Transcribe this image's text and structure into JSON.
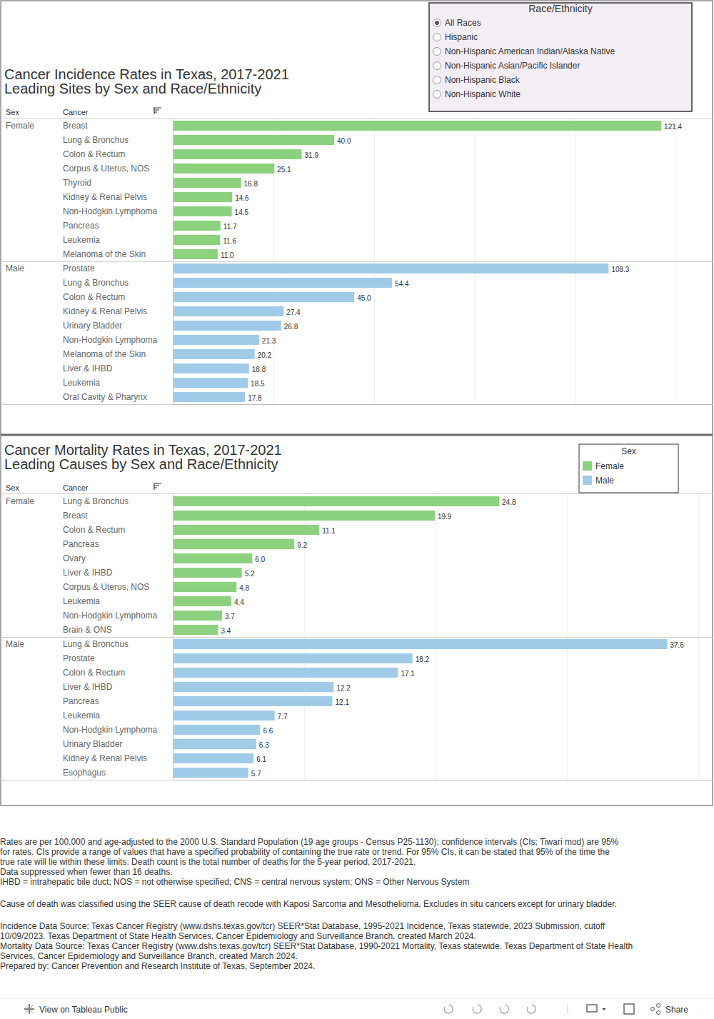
{
  "filter": {
    "title": "Race/Ethnicity",
    "options": [
      "All Races",
      "Hispanic",
      "Non-Hispanic American Indian/Alaska Native",
      "Non-Hispanic Asian/Pacific Islander",
      "Non-Hispanic Black",
      "Non-Hispanic White"
    ],
    "selected": "All Races"
  },
  "chart_data": [
    {
      "type": "bar",
      "orientation": "horizontal",
      "title": "Cancer Incidence Rates in Texas, 2017-2021",
      "subtitle": "Leading Sites by Sex and Race/Ethnicity",
      "row_header": "Sex",
      "category_header": "Cancer",
      "xlim": [
        0,
        134
      ],
      "xticks": [
        0,
        25,
        50,
        75,
        100,
        125
      ],
      "grid": true,
      "tick_labels": false,
      "data_labels": true,
      "series": [
        {
          "name": "Female",
          "color": "#8cd17d",
          "categories": [
            "Breast",
            "Lung & Bronchus",
            "Colon & Rectum",
            "Corpus & Uterus, NOS",
            "Thyroid",
            "Kidney & Renal Pelvis",
            "Non-Hodgkin Lymphoma",
            "Pancreas",
            "Leukemia",
            "Melanoma of the Skin"
          ],
          "values": [
            121.4,
            40.0,
            31.9,
            25.1,
            16.8,
            14.6,
            14.5,
            11.7,
            11.6,
            11.0
          ],
          "value_labels": [
            "121.4",
            "40.0",
            "31.9",
            "25.1",
            "16.8",
            "14.6",
            "14.5",
            "11.7",
            "11.6",
            "11.0"
          ]
        },
        {
          "name": "Male",
          "color": "#a0cbe8",
          "categories": [
            "Prostate",
            "Lung & Bronchus",
            "Colon & Rectum",
            "Kidney & Renal Pelvis",
            "Urinary Bladder",
            "Non-Hodgkin Lymphoma",
            "Melanoma of the Skin",
            "Liver & IHBD",
            "Leukemia",
            "Oral Cavity & Pharynx"
          ],
          "values": [
            108.3,
            54.4,
            45.0,
            27.4,
            26.8,
            21.3,
            20.2,
            18.8,
            18.5,
            17.8
          ],
          "value_labels": [
            "108.3",
            "54.4",
            "45.0",
            "27.4",
            "26.8",
            "21.3",
            "20.2",
            "18.8",
            "18.5",
            "17.8"
          ]
        }
      ]
    },
    {
      "type": "bar",
      "orientation": "horizontal",
      "title": "Cancer Mortality Rates in Texas, 2017-2021",
      "subtitle": "Leading Causes by Sex and Race/Ethnicity",
      "row_header": "Sex",
      "category_header": "Cancer",
      "xlim": [
        0,
        41
      ],
      "xticks": [
        0,
        10,
        20,
        30,
        40
      ],
      "grid": true,
      "tick_labels": false,
      "data_labels": true,
      "legend": "top-right",
      "legend_title": "Sex",
      "series": [
        {
          "name": "Female",
          "color": "#8cd17d",
          "categories": [
            "Lung & Bronchus",
            "Breast",
            "Colon & Rectum",
            "Pancreas",
            "Ovary",
            "Liver & IHBD",
            "Corpus & Uterus, NOS",
            "Leukemia",
            "Non-Hodgkin Lymphoma",
            "Brain & ONS"
          ],
          "values": [
            24.8,
            19.9,
            11.1,
            9.2,
            6.0,
            5.2,
            4.8,
            4.4,
            3.7,
            3.4
          ],
          "value_labels": [
            "24.8",
            "19.9",
            "11.1",
            "9.2",
            "6.0",
            "5.2",
            "4.8",
            "4.4",
            "3.7",
            "3.4"
          ]
        },
        {
          "name": "Male",
          "color": "#a0cbe8",
          "categories": [
            "Lung & Bronchus",
            "Prostate",
            "Colon & Rectum",
            "Liver & IHBD",
            "Pancreas",
            "Leukemia",
            "Non-Hodgkin Lymphoma",
            "Urinary Bladder",
            "Kidney & Renal Pelvis",
            "Esophagus"
          ],
          "values": [
            37.6,
            18.2,
            17.1,
            12.2,
            12.1,
            7.7,
            6.6,
            6.3,
            6.1,
            5.7
          ],
          "value_labels": [
            "37.6",
            "18.2",
            "17.1",
            "12.2",
            "12.1",
            "7.7",
            "6.6",
            "6.3",
            "6.1",
            "5.7"
          ]
        }
      ]
    }
  ],
  "footnotes": [
    [
      "Rates are per 100,000 and age-adjusted to the 2000 U.S. Standard Population (19 age groups - Census P25-1130); confidence intervals (CIs; Tiwari mod) are 95%",
      "for rates. CIs provide a range of values that have a specified probability of containing the true rate or trend. For 95% CIs, it can be stated that 95% of the time the",
      "true rate will lie within these limits. Death count is the total number of deaths for the 5-year period, 2017-2021.",
      "Data suppressed when fewer than 16 deaths.",
      "IHBD = intrahepatic bile duct; NOS = not otherwise specified; CNS = central nervous system; ONS = Other Nervous System"
    ],
    [
      "Cause of death was classified using the SEER cause of death recode with Kaposi Sarcoma and Mesothelioma. Excludes in situ cancers except for urinary bladder."
    ],
    [
      "Incidence Data Source: Texas Cancer Registry (www.dshs.texas.gov/tcr) SEER*Stat Database, 1995-2021 Incidence, Texas statewide, 2023 Submission, cutoff",
      "10/09/2023. Texas Department of State Health Services, Cancer Epidemiology and Surveillance Branch, created March 2024.",
      "Mortality Data Source: Texas Cancer Registry (www.dshs.texas.gov/tcr) SEER*Stat Database, 1990-2021 Mortality, Texas statewide. Texas Department of State Health",
      "Services, Cancer Epidemiology and Surveillance Branch, created March 2024.",
      "Prepared by: Cancer Prevention and Research Institute of Texas, September 2024."
    ]
  ],
  "toolbar": {
    "link": "View on Tableau Public",
    "share": "Share"
  }
}
